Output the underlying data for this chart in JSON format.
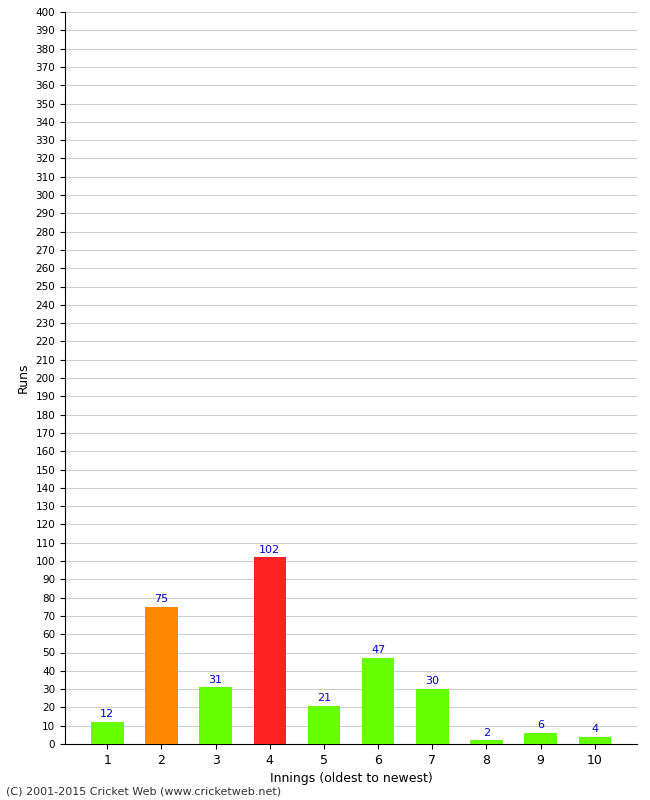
{
  "xlabel": "Innings (oldest to newest)",
  "ylabel": "Runs",
  "categories": [
    1,
    2,
    3,
    4,
    5,
    6,
    7,
    8,
    9,
    10
  ],
  "values": [
    12,
    75,
    31,
    102,
    21,
    47,
    30,
    2,
    6,
    4
  ],
  "bar_colors": [
    "#66ff00",
    "#ff8800",
    "#66ff00",
    "#ff2222",
    "#66ff00",
    "#66ff00",
    "#66ff00",
    "#66ff00",
    "#66ff00",
    "#66ff00"
  ],
  "label_color": "#0000cc",
  "ylim": [
    0,
    400
  ],
  "background_color": "#ffffff",
  "grid_color": "#cccccc",
  "footer": "(C) 2001-2015 Cricket Web (www.cricketweb.net)"
}
